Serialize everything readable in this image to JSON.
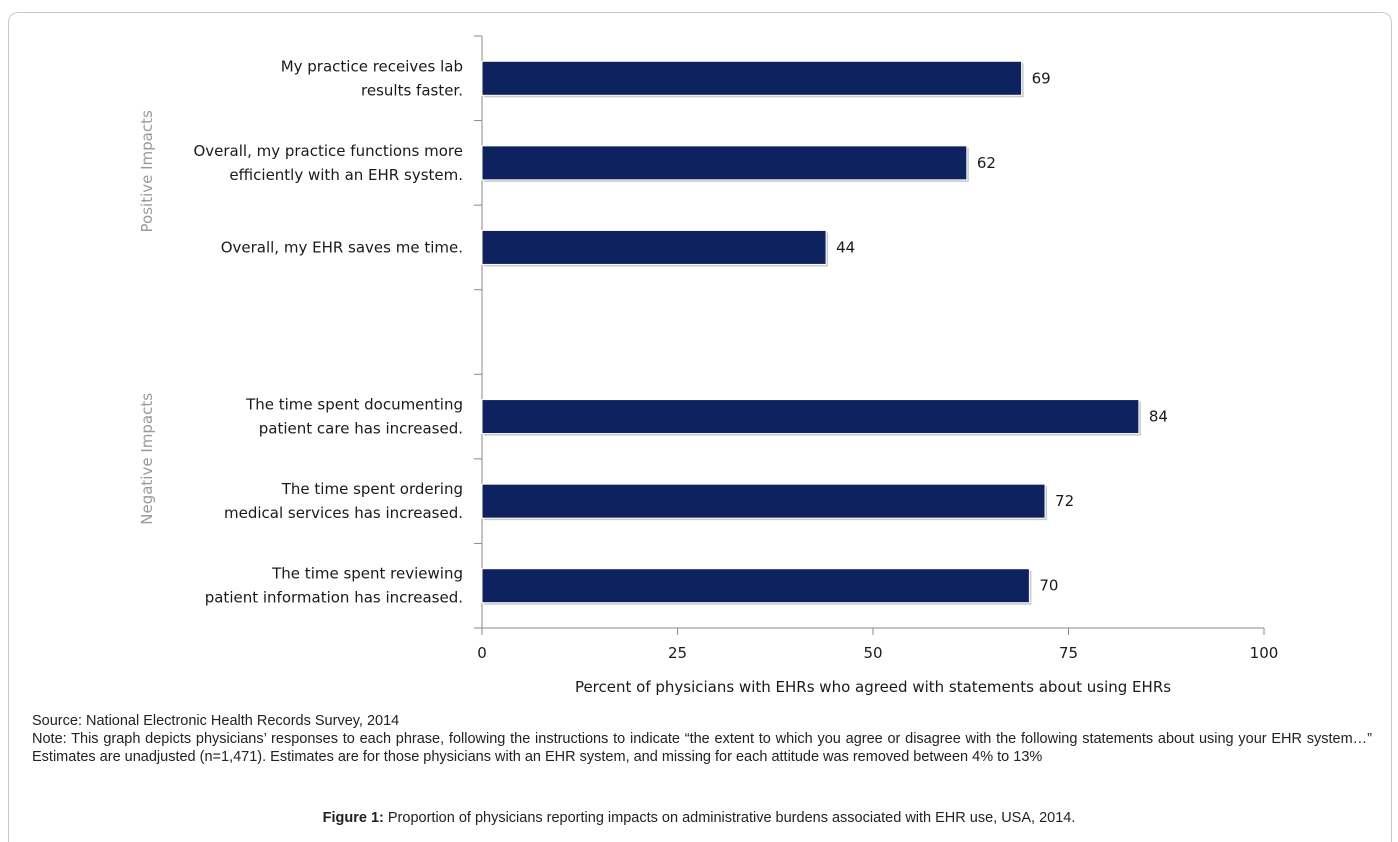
{
  "chart_data": {
    "type": "bar",
    "orientation": "horizontal",
    "groups": [
      {
        "name": "Positive Impacts",
        "categories": [
          [
            "My practice receives lab",
            "results faster."
          ],
          [
            "Overall, my practice functions more",
            "efficiently with an EHR system."
          ],
          [
            "Overall, my EHR saves me time."
          ]
        ],
        "values": [
          69,
          62,
          44
        ]
      },
      {
        "name": "Negative Impacts",
        "categories": [
          [
            "The time spent documenting",
            "patient care has increased."
          ],
          [
            "The time spent ordering",
            "medical services has increased."
          ],
          [
            "The time spent reviewing",
            "patient information has increased."
          ]
        ],
        "values": [
          84,
          72,
          70
        ]
      }
    ],
    "xlabel": "Percent of physicians with EHRs who agreed with statements about using EHRs",
    "xlim": [
      0,
      100
    ],
    "xticks": [
      "0",
      "25",
      "50",
      "75",
      "100"
    ],
    "bar_color": "#0f2260",
    "grid": false
  },
  "source_text": "Source: National Electronic Health Records Survey, 2014",
  "note_text": "Note: This graph depicts physicians’ responses to each phrase, following the instructions to indicate “the extent to which you agree or disagree with the following statements about using your EHR system…” Estimates are unadjusted (n=1,471). Estimates are for those physicians with an EHR system, and missing for each attitude was removed between 4% to 13%",
  "caption": {
    "label": "Figure 1:",
    "text": " Proportion of physicians reporting impacts on administrative burdens associated with EHR use, USA, 2014."
  }
}
